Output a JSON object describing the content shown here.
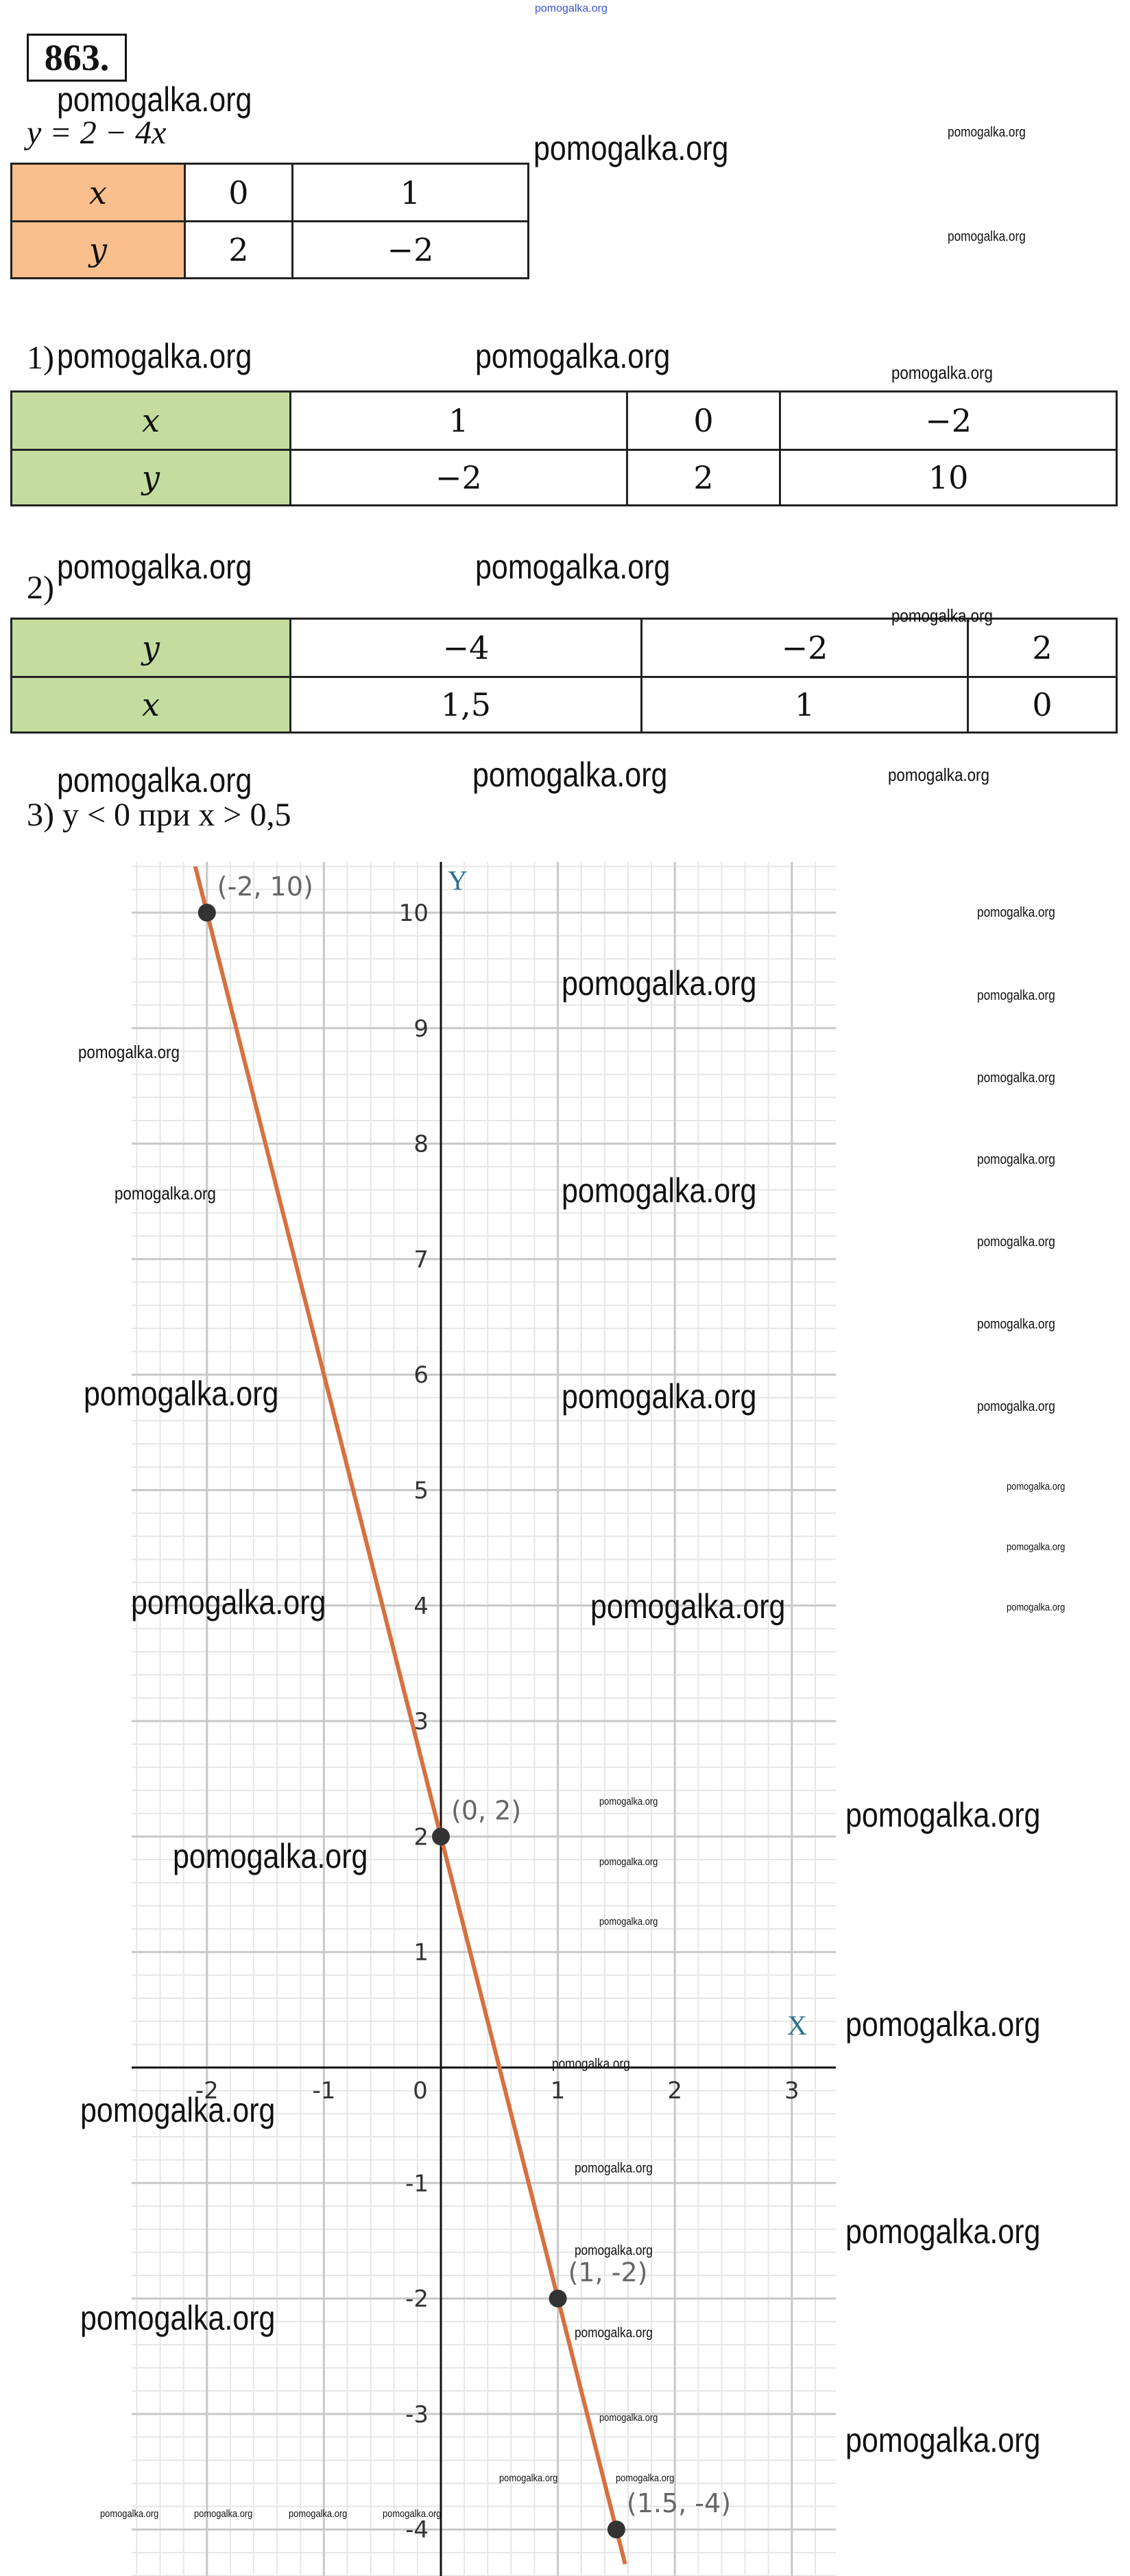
{
  "watermark": "pomogalka.org",
  "problem_number": "863.",
  "equation": "y = 2 − 4x",
  "table_main": {
    "rows": [
      [
        "x",
        "0",
        "1"
      ],
      [
        "y",
        "2",
        "−2"
      ]
    ]
  },
  "part1": {
    "label": "1)",
    "rows": [
      [
        "x",
        "1",
        "0",
        "−2"
      ],
      [
        "y",
        "−2",
        "2",
        "10"
      ]
    ]
  },
  "part2": {
    "label": "2)",
    "rows": [
      [
        "y",
        "−4",
        "−2",
        "2"
      ],
      [
        "x",
        "1,5",
        "1",
        "0"
      ]
    ]
  },
  "part3": {
    "label": "3) y < 0 при x > 0,5"
  },
  "colors": {
    "line": "#d8703f",
    "point": "#333333",
    "header_orange": "#fbbf8e",
    "header_green": "#c4dd9f",
    "grid": "#c8c8c8"
  },
  "chart_data": {
    "type": "line",
    "title": "",
    "xlabel": "X",
    "ylabel": "Y",
    "xlim": [
      -2.6,
      3.4
    ],
    "ylim": [
      -4.3,
      10.45
    ],
    "grid": true,
    "x_ticks": [
      "-2",
      "-1",
      "0",
      "1",
      "2",
      "3"
    ],
    "y_ticks": [
      "10",
      "9",
      "8",
      "7",
      "6",
      "5",
      "4",
      "3",
      "2",
      "1",
      "-1",
      "-2",
      "-3",
      "-4"
    ],
    "series": [
      {
        "function": "y = 2 - 4x",
        "x": [
          -2.1,
          1.575
        ],
        "y": [
          10.4,
          -4.3
        ]
      }
    ],
    "points": [
      {
        "x": -2,
        "y": 10,
        "label": "(-2, 10)"
      },
      {
        "x": 0,
        "y": 2,
        "label": "(0, 2)"
      },
      {
        "x": 1,
        "y": -2,
        "label": "(1, -2)"
      },
      {
        "x": 1.5,
        "y": -4,
        "label": "(1.5, -4)"
      }
    ]
  }
}
